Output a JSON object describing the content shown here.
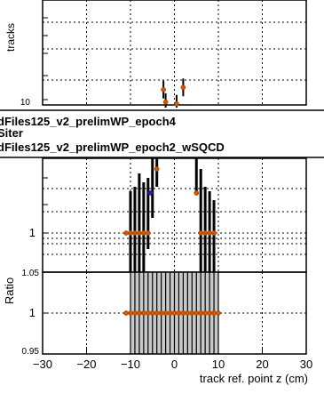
{
  "chart_data": [
    {
      "panel": "top",
      "type": "scatter",
      "ylabel": "tracks",
      "yscale": "log",
      "ytick_labels": [
        "10"
      ],
      "ylim": [
        10,
        60
      ],
      "xlim": [
        -30,
        30
      ],
      "grid": true,
      "legend": {
        "placement": "bottom-left",
        "entries": [
          "dFiles125_v2_prelimWP_epoch4",
          "Siter",
          "dFiles125_v2_prelimWP_epoch2_wSQCD"
        ]
      },
      "series": [
        {
          "color": "#d45500",
          "x": [
            -2.5,
            -2,
            0.5,
            2
          ],
          "y": [
            13,
            10.5,
            10.2,
            13.5
          ]
        }
      ]
    },
    {
      "panel": "middle",
      "type": "scatter",
      "ytick_labels": [
        "1"
      ],
      "xlim": [
        -30,
        30
      ],
      "grid": true,
      "series": [
        {
          "color": "#d45500",
          "x": [
            -11,
            -10,
            -9,
            -8,
            -7,
            -6,
            6,
            7,
            8,
            9
          ],
          "y": [
            1.0,
            1.0,
            1.0,
            1.0,
            1.0,
            1.0,
            1.0,
            1.0,
            1.0,
            1.0
          ]
        },
        {
          "color": "#1a1acc",
          "x": [
            -5.5
          ],
          "y": [
            3.0
          ]
        }
      ]
    },
    {
      "panel": "ratio",
      "type": "scatter",
      "ylabel": "Ratio",
      "xlabel": "track ref. point z (cm)",
      "ylim": [
        0.95,
        1.05
      ],
      "ytick_labels": [
        "0.95",
        "1",
        "1.05"
      ],
      "xlim": [
        -30,
        30
      ],
      "xticks": [
        -30,
        -20,
        -10,
        0,
        10,
        20,
        30
      ],
      "xtick_labels": [
        "−30",
        "−20",
        "−10",
        "0",
        "10",
        "20",
        "30"
      ],
      "grid": true,
      "band": {
        "x_from": -10,
        "x_to": 10,
        "color": "#c8c8c8"
      },
      "series": [
        {
          "color": "#d45500",
          "x": [
            -11,
            -10,
            -9,
            -8,
            -7,
            -6,
            -5,
            -4,
            -3,
            -2,
            -1,
            0,
            1,
            2,
            3,
            4,
            5,
            6,
            7,
            8,
            9,
            10
          ],
          "y": [
            1,
            1,
            1,
            1,
            1,
            1,
            1,
            1,
            1,
            1,
            1,
            1,
            1,
            1,
            1,
            1,
            1,
            1,
            1,
            1,
            1,
            1
          ]
        }
      ]
    }
  ]
}
